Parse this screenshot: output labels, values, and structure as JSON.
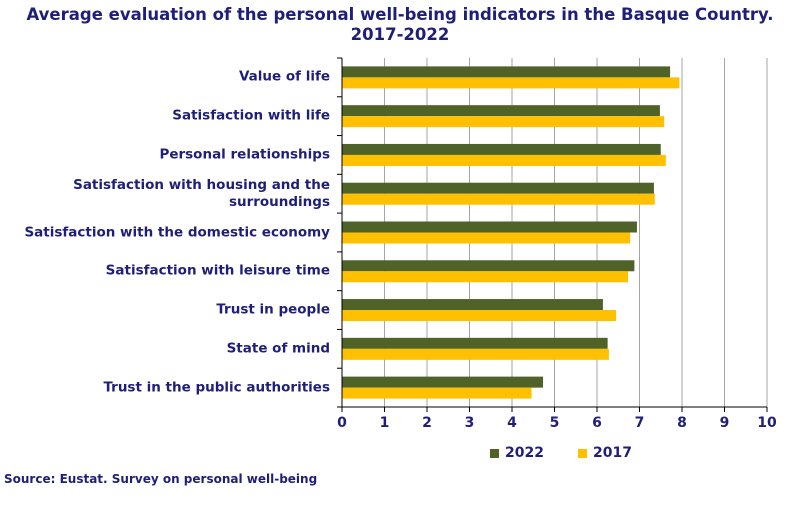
{
  "chart_data": {
    "type": "bar",
    "orientation": "horizontal",
    "title_line1": "Average evaluation of the personal well-being indicators in the Basque Country.",
    "title_line2": "2017-2022",
    "categories": [
      "Value of life",
      "Satisfaction with life",
      "Personal relationships",
      "Satisfaction with housing and the surroundings",
      "Satisfaction with the domestic economy",
      "Satisfaction with leisure time",
      "Trust in people",
      "State of mind",
      "Trust in the public authorities"
    ],
    "series": [
      {
        "name": "2022",
        "color": "#4f6228",
        "values": [
          7.72,
          7.48,
          7.5,
          7.34,
          6.94,
          6.88,
          6.14,
          6.25,
          4.73
        ]
      },
      {
        "name": "2017",
        "color": "#ffc000",
        "values": [
          7.94,
          7.58,
          7.62,
          7.36,
          6.78,
          6.73,
          6.45,
          6.28,
          4.46
        ]
      }
    ],
    "xlim": [
      0,
      10
    ],
    "xticks": [
      "0",
      "1",
      "2",
      "3",
      "4",
      "5",
      "6",
      "7",
      "8",
      "9",
      "10"
    ],
    "grid": true,
    "legend_position": "bottom"
  },
  "source": "Source: Eustat. Survey on personal well-being"
}
